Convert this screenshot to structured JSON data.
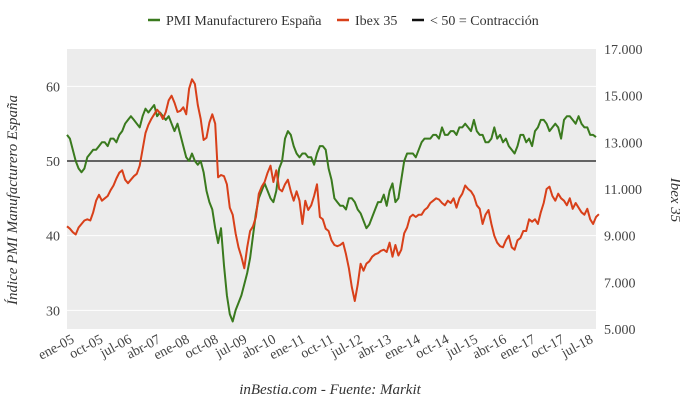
{
  "chart_data": {
    "type": "line",
    "source": "inBestia.com - Fuente: Markit",
    "legend": [
      {
        "key": "pmi",
        "label": "PMI Manufacturero España",
        "color": "#3a7a1e"
      },
      {
        "key": "ibex",
        "label": "Ibex 35",
        "color": "#d8401a"
      },
      {
        "key": "threshold",
        "label": "< 50 = Contracción",
        "color": "#111111"
      }
    ],
    "x_ticks": [
      "ene-05",
      "oct-05",
      "jul-06",
      "abr-07",
      "ene-08",
      "oct-08",
      "jul-09",
      "abr-10",
      "ene-11",
      "oct-11",
      "jul-12",
      "abr-13",
      "ene-14",
      "oct-14",
      "jul-15",
      "abr-16",
      "ene-17",
      "oct-17",
      "jul-18"
    ],
    "y_left": {
      "label": "Índice PMI Manufacturero España",
      "min": 27.5,
      "max": 65,
      "ticks": [
        30,
        40,
        50,
        60
      ],
      "tick_labels": [
        "30",
        "40",
        "50",
        "60"
      ]
    },
    "y_right": {
      "label": "Ibex 35",
      "min": 5000,
      "max": 17000,
      "ticks": [
        5000,
        7000,
        9000,
        11000,
        13000,
        15000,
        17000
      ],
      "tick_labels": [
        "5.000",
        "7.000",
        "9.000",
        "11.000",
        "13.000",
        "15.000",
        "17.000"
      ]
    },
    "threshold": 50,
    "series": [
      {
        "name": "PMI Manufacturero España",
        "axis": "left",
        "values": [
          53.5,
          53,
          51.5,
          50,
          49,
          48.5,
          49,
          50.5,
          51,
          51.5,
          51.5,
          52,
          52.5,
          52.5,
          52,
          53,
          53,
          52.5,
          53.5,
          54,
          55,
          55.5,
          56,
          55.5,
          55,
          54.5,
          56,
          57,
          56.5,
          57,
          57.5,
          56,
          56.5,
          56,
          55.5,
          56,
          55,
          54,
          55,
          53.5,
          52,
          50.5,
          50,
          51,
          50,
          49.5,
          50,
          48.5,
          46,
          44.5,
          43.5,
          41,
          39,
          41,
          36,
          32,
          29.5,
          28.5,
          30,
          31,
          32,
          33.5,
          35,
          37,
          40,
          43,
          45,
          46,
          47,
          46,
          45,
          44.5,
          46,
          49,
          50,
          53,
          54,
          53.5,
          52,
          51,
          50.5,
          51,
          51,
          50.5,
          50.5,
          49.5,
          51,
          52,
          52,
          51.5,
          49,
          47.5,
          45,
          44.5,
          44,
          44,
          43.5,
          45,
          45,
          44.5,
          43.5,
          43,
          42,
          41,
          41.5,
          42.5,
          43.5,
          44.5,
          44.5,
          45.5,
          44,
          46,
          47,
          44.5,
          45,
          47.5,
          50,
          51,
          51,
          51,
          50.5,
          51.5,
          52.5,
          53,
          53,
          53,
          53.5,
          53.5,
          53,
          54.5,
          53.5,
          53.5,
          54,
          54,
          53.5,
          54.5,
          54.5,
          55,
          54.5,
          54,
          55.5,
          54,
          53.5,
          53.5,
          52.5,
          52.5,
          53,
          54.5,
          53,
          53.5,
          52.5,
          53,
          52,
          51.5,
          51,
          52,
          53.5,
          53.5,
          52.5,
          53,
          52,
          54,
          54.5,
          55.5,
          55.5,
          55,
          54,
          54.5,
          55,
          54.5,
          53,
          55.5,
          56,
          56,
          55.5,
          55,
          56,
          55,
          54.5,
          54.5,
          53.5,
          53.5,
          53.2
        ]
      },
      {
        "name": "Ibex 35",
        "axis": "right",
        "values": [
          9400,
          9300,
          9150,
          9050,
          9350,
          9500,
          9650,
          9700,
          9650,
          10000,
          10500,
          10750,
          10500,
          10600,
          10700,
          10950,
          11150,
          11450,
          11700,
          11800,
          11400,
          11250,
          11400,
          11550,
          11650,
          12000,
          12700,
          13400,
          13750,
          14000,
          14200,
          14400,
          14250,
          14000,
          14300,
          14800,
          15000,
          14700,
          14300,
          14350,
          14500,
          14200,
          15300,
          15700,
          15500,
          14600,
          14000,
          13100,
          13200,
          13850,
          14200,
          13800,
          11500,
          11600,
          11550,
          11200,
          10200,
          9900,
          9100,
          8500,
          8100,
          7600,
          8500,
          9200,
          9400,
          9800,
          10800,
          11100,
          11300,
          11700,
          12000,
          11300,
          11800,
          11000,
          10900,
          11200,
          11400,
          10900,
          10500,
          10900,
          10500,
          9500,
          10500,
          10100,
          10300,
          10700,
          11200,
          9800,
          9700,
          9300,
          9200,
          8800,
          8600,
          8550,
          8600,
          8700,
          8200,
          7600,
          6800,
          6200,
          6900,
          7800,
          7500,
          7800,
          7900,
          8100,
          8200,
          8250,
          8350,
          8400,
          8300,
          8700,
          8100,
          8600,
          8150,
          8400,
          9100,
          9350,
          9800,
          9900,
          9800,
          9900,
          9900,
          10100,
          10200,
          10400,
          10500,
          10600,
          10550,
          10400,
          10300,
          10500,
          10400,
          10600,
          10200,
          10600,
          10800,
          11150,
          11000,
          10900,
          10700,
          10300,
          10150,
          9500,
          9900,
          10100,
          9500,
          9000,
          8700,
          8550,
          8500,
          8800,
          9000,
          8500,
          8400,
          8800,
          8900,
          9200,
          9200,
          9700,
          9600,
          9700,
          9500,
          10000,
          10400,
          11000,
          11100,
          10700,
          10500,
          10800,
          10600,
          10500,
          10300,
          10600,
          10150,
          10400,
          10200,
          10000,
          9900,
          10150,
          9700,
          9500,
          9800,
          9920
        ]
      }
    ]
  }
}
